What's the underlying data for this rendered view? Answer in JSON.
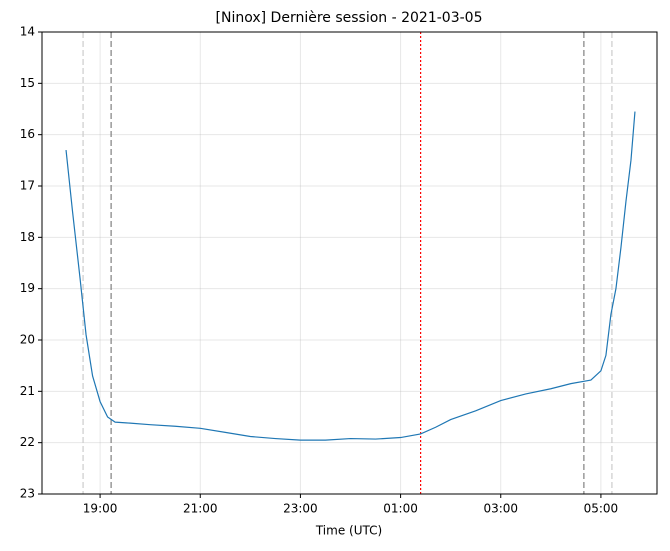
{
  "chart_data": {
    "type": "line",
    "title": "[Ninox] Dernière session - 2021-03-05",
    "xlabel": "Time (UTC)",
    "x": [
      18.32,
      18.45,
      18.6,
      18.72,
      18.85,
      19.0,
      19.15,
      19.3,
      19.6,
      20.0,
      20.5,
      21.0,
      21.5,
      22.0,
      22.5,
      23.0,
      23.5,
      24.0,
      24.5,
      25.0,
      25.4,
      25.7,
      26.0,
      26.5,
      27.0,
      27.5,
      28.0,
      28.4,
      28.8,
      29.0,
      29.1,
      29.2,
      29.3,
      29.4,
      29.5,
      29.6,
      29.68
    ],
    "series": [
      {
        "color": "#1f77b4",
        "values": [
          16.3,
          17.5,
          18.8,
          19.9,
          20.7,
          21.2,
          21.5,
          21.6,
          21.62,
          21.65,
          21.68,
          21.72,
          21.8,
          21.88,
          21.92,
          21.95,
          21.95,
          21.92,
          21.93,
          21.9,
          21.83,
          21.7,
          21.55,
          21.38,
          21.18,
          21.05,
          20.95,
          20.85,
          20.78,
          20.6,
          20.3,
          19.5,
          19.0,
          18.2,
          17.3,
          16.5,
          15.55
        ]
      }
    ],
    "xlim": [
      17.84,
      30.12
    ],
    "xticks": [
      {
        "value": 19,
        "label": "19:00"
      },
      {
        "value": 21,
        "label": "21:00"
      },
      {
        "value": 23,
        "label": "23:00"
      },
      {
        "value": 25,
        "label": "01:00"
      },
      {
        "value": 27,
        "label": "03:00"
      },
      {
        "value": 29,
        "label": "05:00"
      }
    ],
    "ylim": [
      23,
      14
    ],
    "yticks": [
      14,
      15,
      16,
      17,
      18,
      19,
      20,
      21,
      22,
      23
    ],
    "grid": true,
    "vlines": [
      {
        "value": 18.66,
        "color": "#cccccc",
        "style": "dashed"
      },
      {
        "value": 19.22,
        "color": "#808080",
        "style": "dashed"
      },
      {
        "value": 25.4,
        "color": "#ff0000",
        "style": "dotted"
      },
      {
        "value": 28.66,
        "color": "#808080",
        "style": "dashed"
      },
      {
        "value": 29.22,
        "color": "#cccccc",
        "style": "dashed"
      }
    ]
  }
}
